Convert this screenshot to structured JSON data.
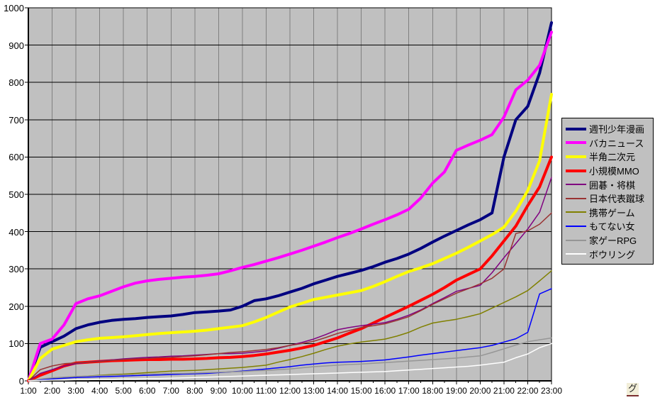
{
  "chart_data": {
    "type": "line",
    "title": "",
    "xlabel": "",
    "ylabel": "",
    "x_start_hour": 1,
    "x_end_hour": 23,
    "x_step_hours": 0.5,
    "x_tick_labels": [
      "1:00",
      "2:00",
      "3:00",
      "4:00",
      "5:00",
      "6:00",
      "7:00",
      "8:00",
      "9:00",
      "10:00",
      "11:00",
      "12:00",
      "13:00",
      "14:00",
      "15:00",
      "16:00",
      "17:00",
      "18:00",
      "19:00",
      "20:00",
      "21:00",
      "22:00",
      "23:00"
    ],
    "ylim": [
      0,
      1000
    ],
    "y_tick_step": 100,
    "y_tick_labels": [
      "0",
      "100",
      "200",
      "300",
      "400",
      "500",
      "600",
      "700",
      "800",
      "900",
      "1000"
    ],
    "grid": {
      "vertical": true,
      "horizontal": true
    },
    "plot_background": "#c0c0c0",
    "vertical_grid_color": "#808080",
    "horizontal_grid_color": "#000000",
    "legend_position": "right",
    "series": [
      {
        "name": "週刊少年漫画",
        "color": "#000080",
        "thick": true,
        "values": [
          0,
          90,
          105,
          120,
          140,
          150,
          157,
          162,
          165,
          167,
          170,
          172,
          174,
          178,
          183,
          185,
          187,
          190,
          200,
          215,
          220,
          228,
          238,
          248,
          260,
          270,
          280,
          288,
          296,
          306,
          318,
          328,
          340,
          355,
          372,
          388,
          403,
          418,
          432,
          450,
          600,
          700,
          736,
          825,
          960
        ]
      },
      {
        "name": "バカニュース",
        "color": "#ff00ff",
        "thick": true,
        "values": [
          0,
          100,
          112,
          150,
          207,
          220,
          228,
          240,
          252,
          262,
          268,
          272,
          275,
          278,
          280,
          283,
          287,
          295,
          304,
          312,
          321,
          330,
          340,
          350,
          361,
          372,
          384,
          395,
          407,
          420,
          432,
          445,
          460,
          490,
          530,
          560,
          618,
          632,
          645,
          660,
          707,
          780,
          806,
          846,
          935
        ]
      },
      {
        "name": "半角二次元",
        "color": "#ffff00",
        "thick": true,
        "values": [
          0,
          60,
          85,
          95,
          105,
          110,
          114,
          116,
          118,
          121,
          124,
          127,
          129,
          131,
          133,
          136,
          140,
          144,
          148,
          158,
          170,
          184,
          198,
          208,
          218,
          224,
          230,
          236,
          242,
          253,
          266,
          280,
          293,
          303,
          314,
          328,
          342,
          358,
          375,
          392,
          412,
          455,
          510,
          590,
          768
        ]
      },
      {
        "name": "小規模MMO",
        "color": "#ff0000",
        "thick": true,
        "values": [
          0,
          15,
          27,
          40,
          48,
          50,
          52,
          54,
          55,
          56,
          57,
          57,
          58,
          58,
          59,
          60,
          62,
          63,
          65,
          68,
          72,
          77,
          82,
          88,
          95,
          105,
          115,
          128,
          140,
          155,
          170,
          185,
          200,
          216,
          232,
          250,
          270,
          285,
          300,
          335,
          375,
          415,
          470,
          520,
          600
        ]
      },
      {
        "name": "囲碁・将棋",
        "color": "#800080",
        "thick": false,
        "values": [
          0,
          20,
          30,
          40,
          46,
          50,
          53,
          56,
          59,
          61,
          63,
          64,
          66,
          67,
          69,
          71,
          73,
          73,
          74,
          77,
          80,
          87,
          95,
          103,
          112,
          124,
          137,
          143,
          148,
          152,
          156,
          165,
          176,
          190,
          207,
          223,
          240,
          248,
          256,
          290,
          330,
          368,
          407,
          452,
          545
        ]
      },
      {
        "name": "日本代表蹴球",
        "color": "#993333",
        "thick": false,
        "values": [
          0,
          30,
          40,
          46,
          48,
          50,
          52,
          55,
          57,
          59,
          60,
          62,
          63,
          65,
          67,
          70,
          73,
          76,
          78,
          81,
          84,
          89,
          95,
          100,
          106,
          116,
          127,
          135,
          143,
          148,
          153,
          162,
          172,
          188,
          205,
          220,
          235,
          247,
          260,
          275,
          300,
          395,
          402,
          420,
          450
        ]
      },
      {
        "name": "携帯ゲーム",
        "color": "#808000",
        "thick": false,
        "values": [
          0,
          3,
          6,
          9,
          11,
          13,
          15,
          17,
          18,
          20,
          22,
          24,
          26,
          27,
          28,
          30,
          32,
          34,
          36,
          39,
          42,
          50,
          57,
          65,
          74,
          84,
          93,
          99,
          104,
          108,
          112,
          120,
          130,
          144,
          155,
          160,
          165,
          172,
          180,
          195,
          210,
          225,
          242,
          268,
          295
        ]
      },
      {
        "name": "もてない女",
        "color": "#0000ff",
        "thick": false,
        "values": [
          0,
          3,
          5,
          7,
          9,
          10,
          11,
          12,
          13,
          14,
          15,
          16,
          17,
          18,
          19,
          20,
          22,
          24,
          26,
          29,
          32,
          35,
          38,
          42,
          45,
          48,
          50,
          51,
          52,
          54,
          56,
          60,
          64,
          69,
          73,
          77,
          81,
          85,
          89,
          95,
          104,
          113,
          130,
          233,
          247
        ]
      },
      {
        "name": "家ゲーRPG",
        "color": "#969696",
        "thick": false,
        "values": [
          0,
          5,
          8,
          10,
          12,
          13,
          14,
          15,
          16,
          17,
          18,
          19,
          20,
          20,
          21,
          22,
          23,
          24,
          25,
          27,
          28,
          30,
          32,
          35,
          38,
          40,
          42,
          44,
          45,
          47,
          49,
          51,
          53,
          55,
          57,
          59,
          61,
          64,
          67,
          76,
          86,
          96,
          105,
          110,
          115
        ]
      },
      {
        "name": "ボウリング",
        "color": "#ffffff",
        "thick": false,
        "values": [
          0,
          1,
          2,
          2,
          3,
          3,
          4,
          4,
          5,
          5,
          6,
          6,
          7,
          8,
          9,
          10,
          11,
          12,
          13,
          14,
          15,
          16,
          17,
          18,
          19,
          20,
          21,
          22,
          23,
          24,
          25,
          27,
          29,
          31,
          33,
          35,
          37,
          39,
          42,
          46,
          50,
          62,
          72,
          89,
          100
        ]
      }
    ]
  },
  "footer": {
    "link_label": "グ"
  }
}
